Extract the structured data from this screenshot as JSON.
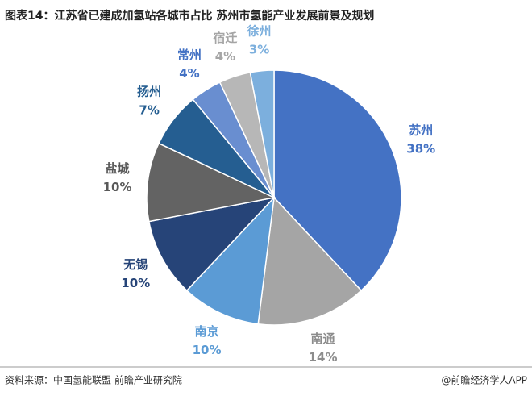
{
  "chart_data": {
    "type": "pie",
    "title": "图表14：江苏省已建成加氢站各城市占比 苏州市氢能产业发展前景及规划",
    "categories": [
      "苏州",
      "南通",
      "南京",
      "无锡",
      "盐城",
      "扬州",
      "常州",
      "宿迁",
      "徐州"
    ],
    "values": [
      38,
      14,
      10,
      10,
      10,
      7,
      4,
      4,
      3
    ],
    "value_labels": [
      "38%",
      "14%",
      "10%",
      "10%",
      "10%",
      "7%",
      "4%",
      "4%",
      "3%"
    ],
    "colors": [
      "#4472c4",
      "#a5a5a5",
      "#5b9bd5",
      "#264478",
      "#636363",
      "#255e91",
      "#698ed0",
      "#b7b7b7",
      "#7cafdd"
    ],
    "label_colors": [
      "#4472c4",
      "#8c8c8c",
      "#5b9bd5",
      "#264478",
      "#595959",
      "#255e91",
      "#4472c4",
      "#a5a5a5",
      "#7cafdd"
    ]
  },
  "source": "资料来源：中国氢能联盟 前瞻产业研究院",
  "credit": "@前瞻经济学人APP"
}
